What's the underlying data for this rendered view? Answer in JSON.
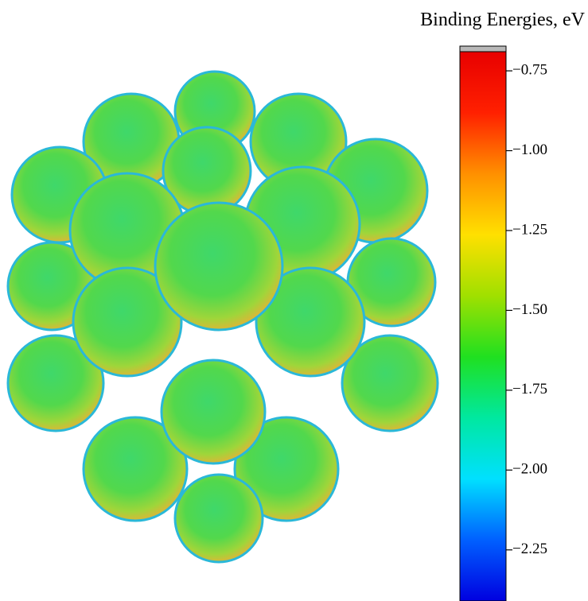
{
  "chart_data": {
    "type": "colorbar",
    "title": "Binding Energies, eV",
    "clim": [
      -2.41,
      -0.69
    ],
    "ticks": [
      {
        "value": -0.75,
        "label": "−0.75"
      },
      {
        "value": -1.0,
        "label": "−1.00"
      },
      {
        "value": -1.25,
        "label": "−1.25"
      },
      {
        "value": -1.5,
        "label": "−1.50"
      },
      {
        "value": -1.75,
        "label": "−1.75"
      },
      {
        "value": -2.0,
        "label": "−2.00"
      },
      {
        "value": -2.25,
        "label": "−2.25"
      }
    ],
    "colormap": [
      "#0000e0",
      "#0060ff",
      "#00e0ff",
      "#00e8a0",
      "#20e020",
      "#a0e000",
      "#ffe000",
      "#ff9000",
      "#ff2000",
      "#e80000"
    ]
  }
}
